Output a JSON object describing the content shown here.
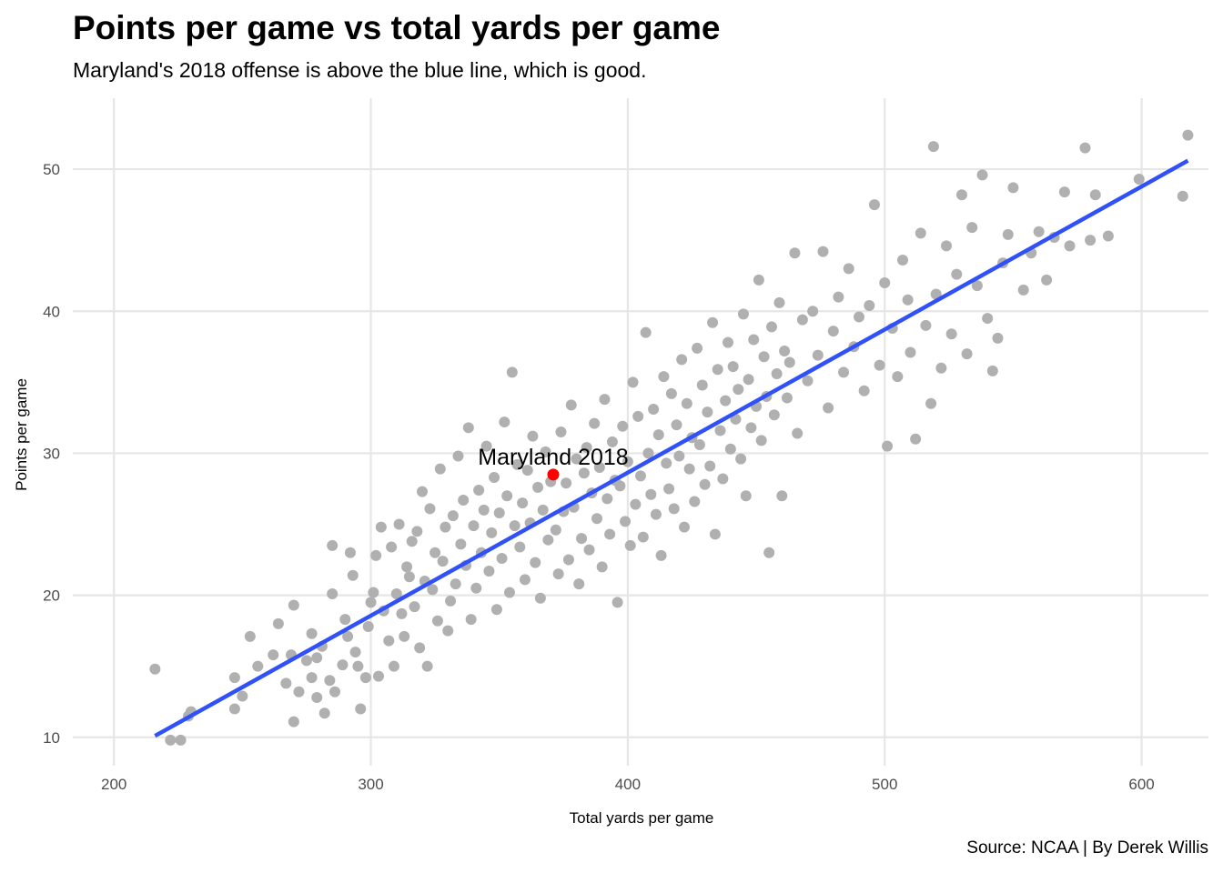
{
  "title": "Points per game vs total yards per game",
  "subtitle": "Maryland's 2018 offense is above the blue line, which is good.",
  "caption": "Source: NCAA | By Derek Willis",
  "colors": {
    "points": "#b0b0b0",
    "highlight": "#ff0000",
    "fit_line": "#3050f8",
    "grid": "#e6e6e6"
  },
  "chart_data": {
    "type": "scatter",
    "xlabel": "Total yards per game",
    "ylabel": "Points per game",
    "xlim": [
      184,
      626
    ],
    "ylim": [
      8,
      55
    ],
    "x_ticks": [
      200,
      300,
      400,
      500,
      600
    ],
    "y_ticks": [
      10,
      20,
      30,
      40,
      50
    ],
    "grid": true,
    "fit_line": {
      "x": [
        216,
        618
      ],
      "y": [
        10.1,
        50.6
      ]
    },
    "highlight": {
      "label": "Maryland 2018",
      "x": 371,
      "y": 28.5
    },
    "points": [
      [
        216,
        14.8
      ],
      [
        222,
        9.8
      ],
      [
        226,
        9.8
      ],
      [
        229,
        11.5
      ],
      [
        230,
        11.8
      ],
      [
        247,
        14.2
      ],
      [
        247,
        12.0
      ],
      [
        250,
        12.9
      ],
      [
        253,
        17.1
      ],
      [
        256,
        15.0
      ],
      [
        262,
        15.8
      ],
      [
        264,
        18.0
      ],
      [
        267,
        13.8
      ],
      [
        269,
        15.8
      ],
      [
        270,
        11.1
      ],
      [
        270,
        19.3
      ],
      [
        272,
        13.2
      ],
      [
        275,
        15.4
      ],
      [
        277,
        17.3
      ],
      [
        277,
        14.2
      ],
      [
        279,
        12.8
      ],
      [
        279,
        15.6
      ],
      [
        281,
        16.4
      ],
      [
        282,
        11.7
      ],
      [
        284,
        14.0
      ],
      [
        285,
        20.1
      ],
      [
        285,
        23.5
      ],
      [
        286,
        13.2
      ],
      [
        289,
        15.1
      ],
      [
        290,
        18.3
      ],
      [
        291,
        17.1
      ],
      [
        292,
        23.0
      ],
      [
        293,
        21.4
      ],
      [
        294,
        16.0
      ],
      [
        295,
        15.0
      ],
      [
        296,
        12.0
      ],
      [
        298,
        14.2
      ],
      [
        299,
        17.8
      ],
      [
        300,
        19.5
      ],
      [
        301,
        20.2
      ],
      [
        302,
        22.8
      ],
      [
        303,
        14.3
      ],
      [
        304,
        24.8
      ],
      [
        305,
        18.9
      ],
      [
        307,
        16.8
      ],
      [
        308,
        23.4
      ],
      [
        309,
        15.0
      ],
      [
        310,
        20.1
      ],
      [
        311,
        25.0
      ],
      [
        312,
        18.7
      ],
      [
        313,
        17.1
      ],
      [
        314,
        22.0
      ],
      [
        315,
        21.3
      ],
      [
        316,
        23.8
      ],
      [
        317,
        19.2
      ],
      [
        318,
        24.5
      ],
      [
        319,
        16.3
      ],
      [
        320,
        27.3
      ],
      [
        321,
        21.0
      ],
      [
        322,
        15.0
      ],
      [
        323,
        26.1
      ],
      [
        324,
        20.4
      ],
      [
        325,
        23.0
      ],
      [
        326,
        18.2
      ],
      [
        327,
        28.9
      ],
      [
        328,
        22.4
      ],
      [
        329,
        24.8
      ],
      [
        330,
        17.5
      ],
      [
        331,
        19.6
      ],
      [
        332,
        25.6
      ],
      [
        333,
        20.8
      ],
      [
        334,
        29.8
      ],
      [
        335,
        23.6
      ],
      [
        336,
        26.7
      ],
      [
        337,
        22.1
      ],
      [
        338,
        31.8
      ],
      [
        339,
        18.3
      ],
      [
        340,
        24.9
      ],
      [
        341,
        20.5
      ],
      [
        342,
        27.4
      ],
      [
        343,
        23.0
      ],
      [
        344,
        26.0
      ],
      [
        345,
        30.5
      ],
      [
        346,
        21.7
      ],
      [
        347,
        24.4
      ],
      [
        348,
        28.3
      ],
      [
        349,
        19.0
      ],
      [
        350,
        25.8
      ],
      [
        351,
        22.6
      ],
      [
        352,
        32.2
      ],
      [
        353,
        27.0
      ],
      [
        354,
        20.2
      ],
      [
        355,
        35.7
      ],
      [
        356,
        24.9
      ],
      [
        357,
        29.2
      ],
      [
        358,
        23.4
      ],
      [
        359,
        26.5
      ],
      [
        360,
        21.1
      ],
      [
        361,
        28.8
      ],
      [
        362,
        25.1
      ],
      [
        363,
        31.2
      ],
      [
        364,
        22.3
      ],
      [
        365,
        27.6
      ],
      [
        366,
        19.8
      ],
      [
        367,
        26.0
      ],
      [
        368,
        30.1
      ],
      [
        369,
        23.9
      ],
      [
        370,
        28.0
      ],
      [
        372,
        24.6
      ],
      [
        373,
        21.5
      ],
      [
        374,
        31.5
      ],
      [
        375,
        25.9
      ],
      [
        376,
        27.9
      ],
      [
        377,
        22.5
      ],
      [
        378,
        33.4
      ],
      [
        379,
        26.2
      ],
      [
        380,
        29.6
      ],
      [
        381,
        20.8
      ],
      [
        382,
        24.0
      ],
      [
        383,
        28.6
      ],
      [
        384,
        30.4
      ],
      [
        385,
        23.2
      ],
      [
        386,
        27.2
      ],
      [
        387,
        32.1
      ],
      [
        388,
        25.4
      ],
      [
        389,
        29.0
      ],
      [
        390,
        22.0
      ],
      [
        391,
        33.8
      ],
      [
        392,
        26.8
      ],
      [
        393,
        24.3
      ],
      [
        394,
        30.8
      ],
      [
        395,
        28.1
      ],
      [
        396,
        19.5
      ],
      [
        397,
        27.7
      ],
      [
        398,
        31.9
      ],
      [
        399,
        25.2
      ],
      [
        400,
        29.4
      ],
      [
        401,
        23.5
      ],
      [
        402,
        35.0
      ],
      [
        403,
        26.4
      ],
      [
        404,
        32.6
      ],
      [
        405,
        28.4
      ],
      [
        406,
        24.1
      ],
      [
        407,
        38.5
      ],
      [
        408,
        30.0
      ],
      [
        409,
        27.1
      ],
      [
        410,
        33.1
      ],
      [
        411,
        25.7
      ],
      [
        412,
        31.3
      ],
      [
        413,
        22.8
      ],
      [
        414,
        35.4
      ],
      [
        415,
        29.3
      ],
      [
        416,
        27.5
      ],
      [
        417,
        34.2
      ],
      [
        418,
        26.1
      ],
      [
        419,
        32.0
      ],
      [
        420,
        29.8
      ],
      [
        421,
        36.6
      ],
      [
        422,
        24.8
      ],
      [
        423,
        33.5
      ],
      [
        424,
        28.9
      ],
      [
        425,
        31.1
      ],
      [
        426,
        26.6
      ],
      [
        427,
        37.4
      ],
      [
        428,
        30.6
      ],
      [
        429,
        34.8
      ],
      [
        430,
        27.8
      ],
      [
        431,
        32.9
      ],
      [
        432,
        29.1
      ],
      [
        433,
        39.2
      ],
      [
        434,
        24.3
      ],
      [
        435,
        35.9
      ],
      [
        436,
        31.6
      ],
      [
        437,
        28.2
      ],
      [
        438,
        33.7
      ],
      [
        439,
        37.8
      ],
      [
        440,
        30.3
      ],
      [
        441,
        36.1
      ],
      [
        442,
        32.4
      ],
      [
        443,
        34.5
      ],
      [
        444,
        29.6
      ],
      [
        445,
        39.8
      ],
      [
        446,
        27.0
      ],
      [
        447,
        35.2
      ],
      [
        448,
        31.8
      ],
      [
        449,
        38.0
      ],
      [
        450,
        33.3
      ],
      [
        451,
        42.2
      ],
      [
        452,
        30.9
      ],
      [
        453,
        36.8
      ],
      [
        454,
        34.0
      ],
      [
        455,
        23.0
      ],
      [
        456,
        38.9
      ],
      [
        457,
        32.7
      ],
      [
        458,
        35.6
      ],
      [
        459,
        40.6
      ],
      [
        460,
        27.0
      ],
      [
        461,
        37.2
      ],
      [
        462,
        33.9
      ],
      [
        463,
        36.4
      ],
      [
        465,
        44.1
      ],
      [
        466,
        31.4
      ],
      [
        468,
        39.4
      ],
      [
        470,
        35.1
      ],
      [
        472,
        40.0
      ],
      [
        474,
        36.9
      ],
      [
        476,
        44.2
      ],
      [
        478,
        33.2
      ],
      [
        480,
        38.6
      ],
      [
        482,
        41.0
      ],
      [
        484,
        35.7
      ],
      [
        486,
        43.0
      ],
      [
        488,
        37.5
      ],
      [
        490,
        39.6
      ],
      [
        492,
        34.4
      ],
      [
        494,
        40.4
      ],
      [
        496,
        47.5
      ],
      [
        498,
        36.2
      ],
      [
        500,
        42.0
      ],
      [
        501,
        30.5
      ],
      [
        503,
        38.8
      ],
      [
        505,
        35.4
      ],
      [
        507,
        43.6
      ],
      [
        509,
        40.8
      ],
      [
        510,
        37.1
      ],
      [
        512,
        31.0
      ],
      [
        514,
        45.5
      ],
      [
        516,
        39.0
      ],
      [
        518,
        33.5
      ],
      [
        519,
        51.6
      ],
      [
        520,
        41.2
      ],
      [
        522,
        36.0
      ],
      [
        524,
        44.6
      ],
      [
        526,
        38.4
      ],
      [
        528,
        42.6
      ],
      [
        530,
        48.2
      ],
      [
        532,
        37.0
      ],
      [
        534,
        45.9
      ],
      [
        536,
        41.8
      ],
      [
        538,
        49.6
      ],
      [
        540,
        39.5
      ],
      [
        542,
        35.8
      ],
      [
        544,
        38.1
      ],
      [
        546,
        43.4
      ],
      [
        548,
        45.4
      ],
      [
        550,
        48.7
      ],
      [
        554,
        41.5
      ],
      [
        557,
        44.1
      ],
      [
        560,
        45.6
      ],
      [
        563,
        42.2
      ],
      [
        566,
        45.2
      ],
      [
        570,
        48.4
      ],
      [
        572,
        44.6
      ],
      [
        578,
        51.5
      ],
      [
        580,
        45.0
      ],
      [
        582,
        48.2
      ],
      [
        587,
        45.3
      ],
      [
        599,
        49.3
      ],
      [
        616,
        48.1
      ],
      [
        618,
        52.4
      ]
    ]
  }
}
